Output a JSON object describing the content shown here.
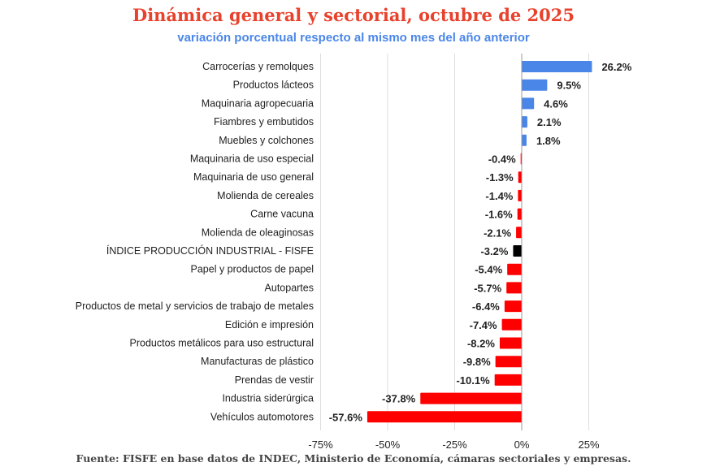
{
  "title": "Dinámica general y sectorial, octubre de 2025",
  "subtitle": "variación porcentual respecto al mismo mes del  año anterior",
  "footer": "Fuente: FISFE en base datos de INDEC, Ministerio de Economía, cámaras sectoriales y empresas.",
  "chart_data": {
    "type": "bar",
    "orientation": "horizontal",
    "title": "Dinámica general y sectorial, octubre de 2025",
    "subtitle": "variación porcentual respecto al mismo mes del  año anterior",
    "categories": [
      "Carrocerías y remolques",
      "Productos lácteos",
      "Maquinaria agropecuaria",
      "Fiambres y embutidos",
      "Muebles y colchones",
      "Maquinaria de uso especial",
      "Maquinaria de uso general",
      "Molienda de cereales",
      "Carne vacuna",
      "Molienda de oleaginosas",
      "ÍNDICE PRODUCCIÓN INDUSTRIAL - FISFE",
      "Papel y productos de papel",
      "Autopartes",
      "Productos de metal y servicios de trabajo de metales",
      "Edición e impresión",
      "Productos metálicos para uso estructural",
      "Manufacturas de plástico",
      "Prendas de vestir",
      "Industria siderúrgica",
      "Vehículos automotores"
    ],
    "values": [
      26.2,
      9.5,
      4.6,
      2.1,
      1.8,
      -0.4,
      -1.3,
      -1.4,
      -1.6,
      -2.1,
      -3.2,
      -5.4,
      -5.7,
      -6.4,
      -7.4,
      -8.2,
      -9.8,
      -10.1,
      -37.8,
      -57.6
    ],
    "data_labels": [
      "26.2%",
      "9.5%",
      "4.6%",
      "2.1%",
      "1.8%",
      "-0.4%",
      "-1.3%",
      "-1.4%",
      "-1.6%",
      "-2.1%",
      "-3.2%",
      "-5.4%",
      "-5.7%",
      "-6.4%",
      "-7.4%",
      "-8.2%",
      "-9.8%",
      "-10.1%",
      "-37.8%",
      "-57.6%"
    ],
    "xticks": [
      -75,
      -50,
      -25,
      0,
      25
    ],
    "xtick_labels": [
      "-75%",
      "-50%",
      "-25%",
      "0%",
      "25%"
    ],
    "xlim": [
      -75,
      27
    ],
    "grid": true,
    "colors": {
      "positive": "#4a86e8",
      "negative": "#ff0000",
      "index": "#000000"
    }
  }
}
